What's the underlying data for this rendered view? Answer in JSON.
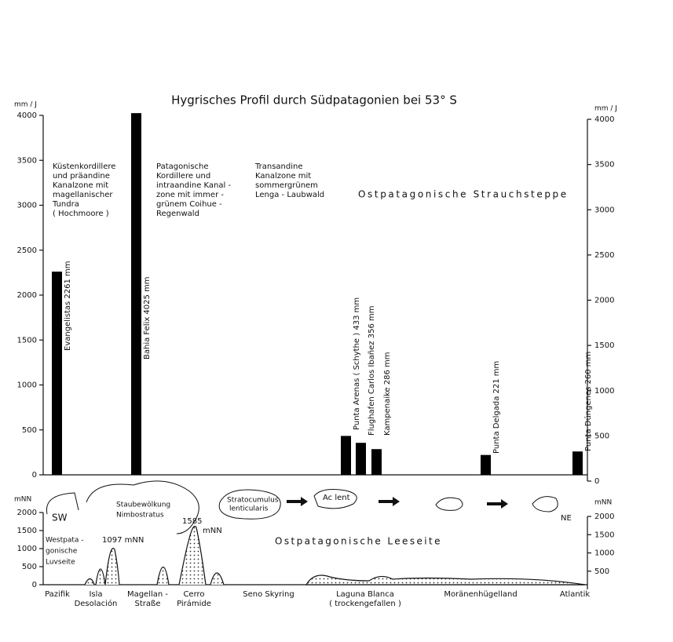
{
  "chart_data": [
    {
      "type": "bar",
      "title": "Hygrisches Profil durch Südpatagonien bei 53° S",
      "y_label": "mm / J",
      "y2_label": "mm / J",
      "categories": [
        "Evangelistas",
        "Bahia Felix",
        "Punta Arenas ( Schythe )",
        "Flughafen Carlos Ibañez",
        "Kampenaike",
        "Punta Delgada",
        "Punta Dúngenes"
      ],
      "values": [
        2261,
        4025,
        433,
        356,
        286,
        221,
        260
      ],
      "value_labels": [
        "2261 mm",
        "4025 mm",
        "433 mm",
        "356 mm",
        "286 mm",
        "221 mm",
        "260 mm"
      ],
      "color": "#000000",
      "ylim": [
        0,
        4000
      ],
      "yticks": [
        0,
        500,
        1000,
        1500,
        2000,
        2500,
        3000,
        3500,
        4000
      ],
      "y2lim": [
        0,
        4000
      ],
      "y2ticks": [
        0,
        500,
        1000,
        1500,
        2000,
        2500,
        3000,
        3500,
        4000
      ],
      "annotations": [
        [
          "Küstenkordillere",
          "und präandine",
          "Kanalzone mit",
          "magellanischer",
          "Tundra",
          "( Hochmoore )"
        ],
        [
          "Patagonische",
          "Kordillere und",
          "intraandine Kanal -",
          "zone mit immer -",
          "grünem Coihue -",
          "Regenwald"
        ],
        [
          "Transandine",
          "Kanalzone mit",
          "sommergrünem",
          "Lenga - Laubwald"
        ],
        [
          "Ostpatagonische  Strauchsteppe"
        ]
      ]
    },
    {
      "type": "profile",
      "y_label": "mNN",
      "y2_label": "mNN",
      "ylim": [
        0,
        2000
      ],
      "yticks": [
        0,
        500,
        1000,
        1500,
        2000
      ],
      "y2lim": [
        0,
        2000
      ],
      "y2ticks": [
        500,
        1000,
        1500,
        2000
      ],
      "categories": [
        [
          "Pazifik"
        ],
        [
          "Isla",
          "Desolación"
        ],
        [
          "Magellan -",
          "Straße"
        ],
        [
          "Cerro",
          "Pirámide"
        ],
        [
          "Seno  Skyring"
        ],
        [
          "Laguna  Blanca",
          "( trockengefallen )"
        ],
        [
          "Moränenhügelland"
        ],
        [
          "Atlantik"
        ]
      ],
      "annotations": [
        "SW",
        "Westpata -",
        "gonische",
        "Luvseite",
        "1097 mNN",
        "1585",
        "mNN",
        "Staubewölkung",
        "Nimbostratus",
        "Stratocumulus",
        "lenticularis",
        "Ac  lent",
        "NE",
        "Ostpatagonische   Leeseite"
      ]
    }
  ]
}
